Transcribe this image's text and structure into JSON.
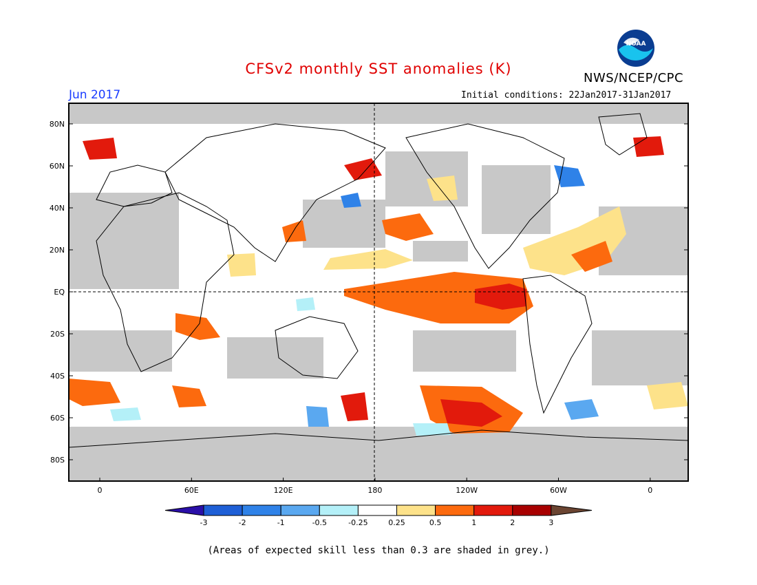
{
  "title": "CFSv2 monthly SST anomalies (K)",
  "agency": "NWS/NCEP/CPC",
  "logo_text": "NOAA",
  "forecast_month": "Jun 2017",
  "initial_conditions": "Initial conditions: 22Jan2017-31Jan2017",
  "footnote": "(Areas of expected skill less than 0.3 are shaded in grey.)",
  "lat_labels": [
    "80N",
    "60N",
    "40N",
    "20N",
    "EQ",
    "20S",
    "40S",
    "60S",
    "80S"
  ],
  "lon_labels": [
    "0",
    "60E",
    "120E",
    "180",
    "120W",
    "60W",
    "0"
  ],
  "colorbar": {
    "ticks": [
      "-3",
      "-2",
      "-1",
      "-0.5",
      "-0.25",
      "0.25",
      "0.5",
      "1",
      "2",
      "3"
    ],
    "colors": [
      "#2a0fa8",
      "#1e5fd6",
      "#2f82e8",
      "#5aa8f0",
      "#b4f0f8",
      "#ffffff",
      "#fde28a",
      "#fc6a0e",
      "#e21a0c",
      "#a80000",
      "#6b4532"
    ]
  },
  "colors": {
    "land": "#c8c8c8",
    "ocean_neutral": "#ffffff",
    "title": "#e00000",
    "month": "#1a3cff"
  }
}
